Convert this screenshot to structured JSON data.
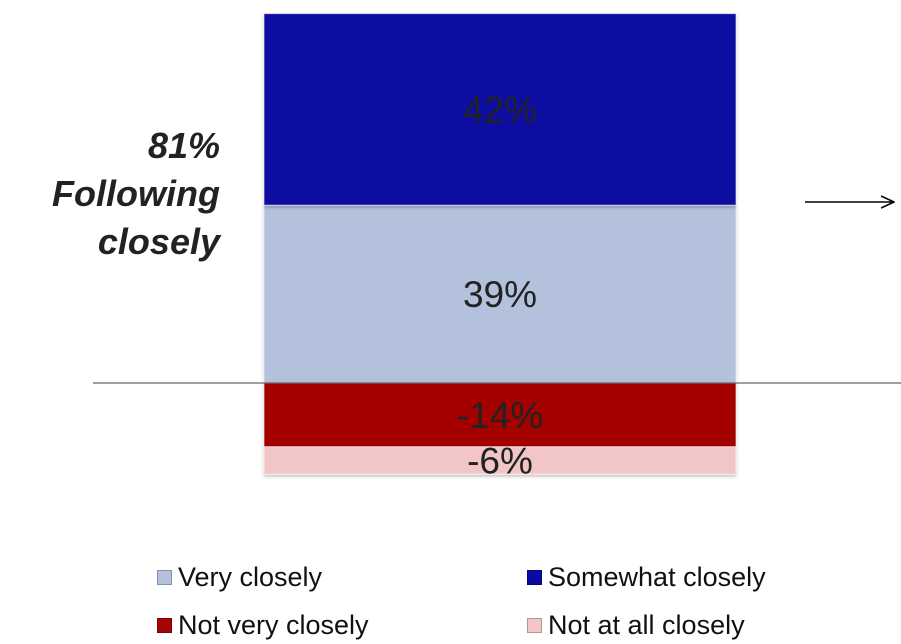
{
  "chart_data": {
    "type": "bar",
    "stacked": "diverging",
    "categories": [
      ""
    ],
    "series": [
      {
        "name": "Very closely",
        "values": [
          39
        ],
        "label": "39%",
        "color": "#b3c1dc",
        "label_color": "#222222"
      },
      {
        "name": "Somewhat closely",
        "values": [
          42
        ],
        "label": "42%",
        "color": "#0a0aa2",
        "label_color": "#222222"
      },
      {
        "name": "Not very closely",
        "values": [
          -14
        ],
        "label": "-14%",
        "color": "#a40404",
        "label_color": "#222222"
      },
      {
        "name": "Not at all closely",
        "values": [
          -6
        ],
        "label": "-6%",
        "color": "#f2c6c6",
        "label_color": "#222222"
      }
    ],
    "ylim": [
      -20,
      85
    ],
    "grid": false,
    "legend_position": "bottom",
    "annotation": {
      "lines": [
        "81%",
        "Following",
        "closely"
      ]
    },
    "arrow": "right"
  }
}
